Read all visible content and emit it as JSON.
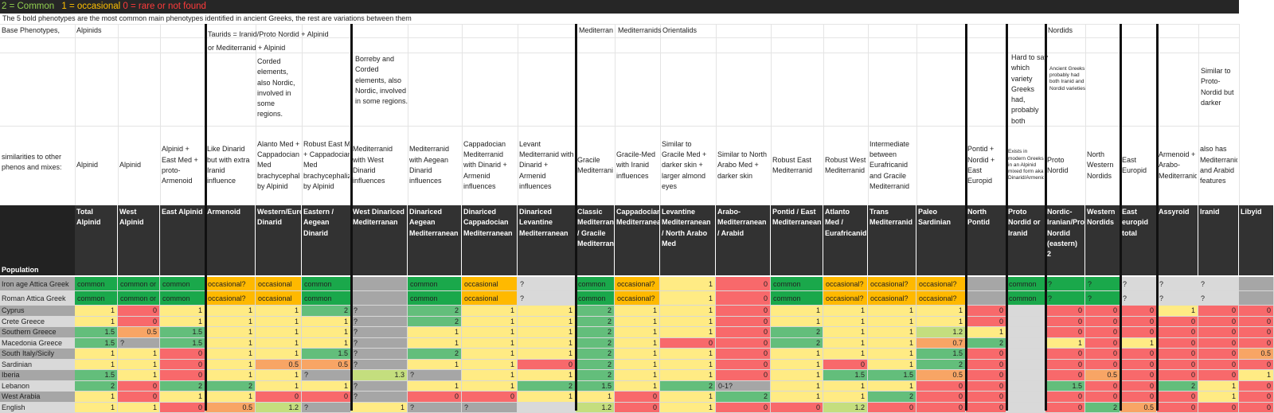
{
  "legend": {
    "part1": "2 = Common",
    "part2": "1 = occasional",
    "part3": " 0 = rare or not found",
    "color1": "#92d050",
    "color2": "#ffc000",
    "color3": "#ff3b3b"
  },
  "note": "The 5 bold phenotypes are the most common main phenotypes identified in ancient Greeks, the rest are variations between them",
  "header_labels": {
    "base_phenotypes": "Base Phenotypes,",
    "alpinids": "Alpinids",
    "taurids_line1": "Taurids = Iranid/Proto Nordid + Alpinid",
    "taurids_line2": "or Mediterranid + Alpinid",
    "mediterran": "Mediterran",
    "mediterranids": "Mediterranids",
    "orientalids": "Orientalids",
    "nordids": "Nordids",
    "similarities": "similarities to other phenos and mixes:",
    "population": "Population"
  },
  "notes_top": {
    "corded": "Corded elements, also Nordic, involved in some regions.",
    "borreby": "Borreby and Corded elements, also Nordic, involved in some regions.",
    "hard_to_say": "Hard to say which variety Greeks had, probably both",
    "ancient_greeks": "Ancient Greeks probably had both Iranid and Nordid varieties",
    "similar_proto": "Similar to Proto-Nordid but darker"
  },
  "descriptions": [
    "Alpinid",
    "Alpinid",
    "Alpinid + East Med + proto-Armenoid",
    "Like Dinarid but with extra Iranid influence",
    "Alanto Med + Cappadocian Med brachycephalized by Alpinid",
    "Robust East Med + Cappadocian Med brachycephalized by Alpinid",
    "Mediterranid with West Dinarid influences",
    "Mediterranid with Aegean Dinarid influences",
    "Cappadocian Mediterranid with Dinarid + Armenid influences",
    "Levant Mediterranid with Dinarid + Armenid influences",
    "Gracile Mediterranid",
    "Gracile-Med with Iranid influences",
    "Similar to Gracile Med + darker skin + larger almond eyes",
    "Similar to North Arabo Med + darker skin",
    "Robust East Mediterranid",
    "Robust West Mediterranid",
    "Intermediate between Eurafricanid and Gracile Mediterranid",
    "",
    "Pontid + Nordid + East Europid",
    "Exists in modern Greeks in an Alpinid mixed form aka Dinarid/Armenid",
    "Proto Nordid",
    "North Western Nordids",
    "East Europid",
    "Armenoid + Arabo-Mediterranid",
    "also has Mediterranid and Arabid features",
    ""
  ],
  "columns": [
    "Total Alpinid",
    "West Alpinid",
    "East Alpinid",
    "Armenoid",
    "Western/European Dinarid",
    "Eastern / Aegean Dinarid",
    "West Dinariced Mediterranan",
    "Dinariced Aegean Mediterranean",
    "Dinariced Cappadocian Mediterranean",
    "Dinariced Levantine Mediterranean",
    "Classic Mediterranean / Gracile Mediterranid",
    "Cappadocian Mediterranean",
    "Levantine Mediterranean / North Arabo Med",
    "Arabo-Mediterranean / Arabid",
    "Pontid / East Mediterranean",
    "Atlanto Med / Eurafricanid",
    "Trans Mediterranid",
    "Paleo Sardinian",
    "North Pontid",
    "Proto Nordid or Iranid",
    "Nordic-Iranian/Proto-Nordid (eastern) 2",
    "Western Nordids",
    "East europid total",
    "Assyroid",
    "Iranid",
    "Libyid"
  ],
  "rows": [
    {
      "label": "Iron age Attica Greek",
      "values": [
        "common",
        "common or",
        "common",
        "occasional?",
        "occasional",
        "common",
        "",
        "common",
        "occasional",
        "?",
        "common",
        "occasional?",
        "1",
        "0",
        "common",
        "occasional?",
        "occasional?",
        "occasional?",
        "",
        "common",
        "?",
        "?",
        "?",
        "?",
        "?",
        ""
      ]
    },
    {
      "label": "Roman Attica Greek",
      "values": [
        "common",
        "common or",
        "common",
        "occasional?",
        "occasional",
        "common",
        "",
        "common",
        "occasional",
        "?",
        "common",
        "occasional?",
        "1",
        "0",
        "common",
        "occasional?",
        "occasional?",
        "occasional?",
        "",
        "common",
        "?",
        "?",
        "?",
        "?",
        "?",
        ""
      ]
    },
    {
      "label": "Cyprus",
      "values": [
        "1",
        "0",
        "1",
        "1",
        "1",
        "2",
        "?",
        "2",
        "1",
        "1",
        "2",
        "1",
        "1",
        "0",
        "1",
        "1",
        "1",
        "1",
        "0",
        "",
        "0",
        "0",
        "0",
        "1",
        "0",
        "0"
      ]
    },
    {
      "label": "Crete Greece",
      "values": [
        "1",
        "0",
        "1",
        "1",
        "1",
        "1",
        "?",
        "2",
        "1",
        "1",
        "2",
        "1",
        "1",
        "0",
        "1",
        "1",
        "1",
        "1",
        "0",
        "",
        "0",
        "0",
        "0",
        "0",
        "0",
        "0"
      ]
    },
    {
      "label": "Southern Greece",
      "values": [
        "1.5",
        "0.5",
        "1.5",
        "1",
        "1",
        "1",
        "?",
        "1",
        "1",
        "1",
        "2",
        "1",
        "1",
        "0",
        "2",
        "1",
        "1",
        "1.2",
        "1",
        "",
        "0",
        "0",
        "0",
        "0",
        "0",
        "0"
      ]
    },
    {
      "label": "Macedonia Greece",
      "values": [
        "1.5",
        "?",
        "1.5",
        "1",
        "1",
        "1",
        "?",
        "1",
        "1",
        "1",
        "2",
        "1",
        "0",
        "0",
        "2",
        "1",
        "1",
        "0.7",
        "2",
        "",
        "1",
        "0",
        "1",
        "0",
        "0",
        "0"
      ]
    },
    {
      "label": "South Italy/Sicily",
      "values": [
        "1",
        "1",
        "0",
        "1",
        "1",
        "1.5",
        "?",
        "2",
        "1",
        "1",
        "2",
        "1",
        "1",
        "0",
        "1",
        "1",
        "1",
        "1.5",
        "0",
        "",
        "0",
        "0",
        "0",
        "0",
        "0",
        "0.5"
      ]
    },
    {
      "label": "Sardinian",
      "values": [
        "1",
        "1",
        "0",
        "1",
        "0.5",
        "0.5",
        "?",
        "1",
        "1",
        "0",
        "2",
        "1",
        "1",
        "0",
        "1",
        "0",
        "1",
        "2",
        "0",
        "",
        "0",
        "0",
        "0",
        "0",
        "0",
        "0"
      ]
    },
    {
      "label": "Iberia",
      "values": [
        "1.5",
        "1",
        "0",
        "1",
        "1",
        "?",
        "1.3",
        "?",
        "1",
        "1",
        "2",
        "1",
        "1",
        "0",
        "1",
        "1.5",
        "1.5",
        "0.5",
        "0",
        "",
        "0",
        "0.5",
        "0",
        "0",
        "0",
        "1"
      ]
    },
    {
      "label": "Lebanon",
      "values": [
        "2",
        "0",
        "2",
        "2",
        "1",
        "1",
        "?",
        "1",
        "1",
        "2",
        "1.5",
        "1",
        "2",
        "0-1?",
        "1",
        "1",
        "1",
        "0",
        "0",
        "",
        "1.5",
        "0",
        "0",
        "2",
        "1",
        "0"
      ]
    },
    {
      "label": "West Arabia",
      "values": [
        "1",
        "0",
        "1",
        "1",
        "0",
        "0",
        "?",
        "0",
        "0",
        "1",
        "1",
        "0",
        "1",
        "2",
        "1",
        "1",
        "2",
        "0",
        "0",
        "",
        "0",
        "0",
        "0",
        "0",
        "1",
        "0"
      ]
    },
    {
      "label": "English",
      "values": [
        "1",
        "1",
        "0",
        "0.5",
        "1.2",
        "?",
        "1",
        "?",
        "?",
        "",
        "1.2",
        "0",
        "1",
        "0",
        "0",
        "1.2",
        "0",
        "0",
        "0",
        "",
        "0",
        "2",
        "0.5",
        "0",
        "0",
        "0"
      ]
    }
  ],
  "text_colors": {
    "legend_text_shadow": "#000000"
  }
}
